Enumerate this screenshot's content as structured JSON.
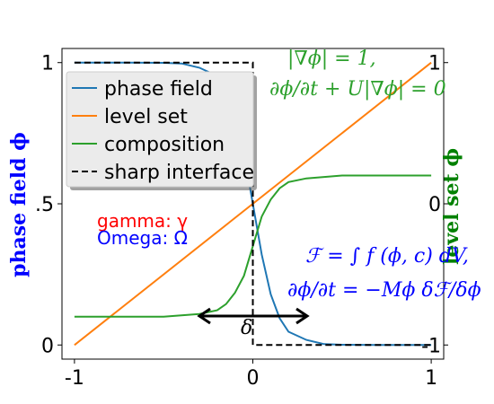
{
  "chart_data": {
    "type": "line",
    "xlim": [
      -1.07,
      1.07
    ],
    "ylim": [
      -0.05,
      1.05
    ],
    "x_ticks": [
      {
        "value": -1,
        "label": "-1"
      },
      {
        "value": 0,
        "label": "0"
      },
      {
        "value": 1,
        "label": "1"
      }
    ],
    "y_ticks": [
      {
        "value": 0,
        "label": "0"
      },
      {
        "value": 0.5,
        "label": ".5"
      },
      {
        "value": 1,
        "label": "1"
      }
    ],
    "right_ticks": [
      {
        "value": 1,
        "label": "1"
      },
      {
        "value": 0.5,
        "label": "0"
      },
      {
        "value": 0,
        "label": "-1"
      }
    ],
    "ylabel_left": "phase field ϕ",
    "ylabel_right": "level set ϕ",
    "legend_position": "upper-left",
    "series": [
      {
        "name": "phase field",
        "color": "#1f77b4",
        "x": [
          -1.0,
          -0.7,
          -0.5,
          -0.4,
          -0.3,
          -0.2,
          -0.15,
          -0.1,
          -0.05,
          0.0,
          0.05,
          0.1,
          0.15,
          0.2,
          0.3,
          0.4,
          0.5,
          0.7,
          1.0
        ],
        "y": [
          1.0,
          1.0,
          0.999,
          0.997,
          0.982,
          0.953,
          0.905,
          0.82,
          0.68,
          0.5,
          0.32,
          0.18,
          0.095,
          0.047,
          0.018,
          0.003,
          0.001,
          0.0,
          0.0
        ]
      },
      {
        "name": "level set",
        "color": "#ff7f0e",
        "x": [
          -1.0,
          1.0
        ],
        "y": [
          0.0,
          1.0
        ]
      },
      {
        "name": "composition",
        "color": "#2ca02c",
        "x": [
          -1.0,
          -0.5,
          -0.3,
          -0.2,
          -0.15,
          -0.1,
          -0.05,
          0.0,
          0.05,
          0.1,
          0.15,
          0.2,
          0.3,
          0.5,
          1.0
        ],
        "y": [
          0.1,
          0.1,
          0.11,
          0.123,
          0.145,
          0.185,
          0.245,
          0.35,
          0.455,
          0.515,
          0.555,
          0.577,
          0.59,
          0.6,
          0.6
        ]
      },
      {
        "name": "sharp interface",
        "color": "#000000",
        "dashed": true,
        "x": [
          -1.0,
          0.0,
          0.0,
          1.0
        ],
        "y": [
          1.0,
          1.0,
          0.0,
          0.0
        ]
      }
    ],
    "annotations": [
      {
        "id": "gamma",
        "text": "gamma: γ",
        "color": "#ff0000"
      },
      {
        "id": "omega",
        "text": "Omega: Ω",
        "color": "#0000ff"
      },
      {
        "id": "eq-level-set-1",
        "text": "|∇ϕ| = 1,",
        "color": "#2ca02c"
      },
      {
        "id": "eq-level-set-2",
        "text": "∂ϕ/∂t + U|∇ϕ| = 0",
        "color": "#2ca02c"
      },
      {
        "id": "eq-energy",
        "text": "ℱ = ∫ f (ϕ, c) dV,",
        "color": "#0000ff"
      },
      {
        "id": "eq-evolution",
        "text": "∂ϕ/∂t = −Mϕ δℱ/δϕ",
        "color": "#0000ff"
      },
      {
        "id": "delta",
        "text": "δ",
        "color": "#000000"
      }
    ]
  }
}
